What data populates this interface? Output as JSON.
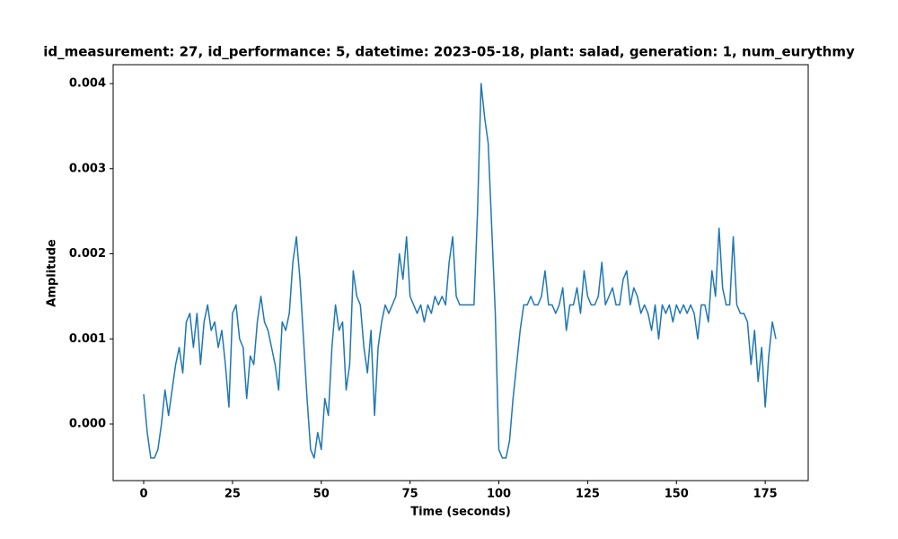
{
  "chart_data": {
    "type": "line",
    "title": "id_measurement: 27, id_performance: 5, datetime: 2023-05-18, plant: salad, generation: 1, num_eurythmy",
    "xlabel": "Time (seconds)",
    "ylabel": "Amplitude",
    "xlim": [
      -8.6,
      187.1
    ],
    "ylim": [
      -0.000665,
      0.004222
    ],
    "xticks": [
      0,
      25,
      50,
      75,
      100,
      125,
      150,
      175
    ],
    "yticks": [
      {
        "value": 0,
        "label": "0.000"
      },
      {
        "value": 0.001,
        "label": "0.001"
      },
      {
        "value": 0.002,
        "label": "0.002"
      },
      {
        "value": 0.003,
        "label": "0.003"
      },
      {
        "value": 0.004,
        "label": "0.004"
      }
    ],
    "grid": false,
    "x": [
      0,
      1,
      2,
      3,
      4,
      5,
      6,
      7,
      8,
      9,
      10,
      11,
      12,
      13,
      14,
      15,
      16,
      17,
      18,
      19,
      20,
      21,
      22,
      23,
      24,
      25,
      26,
      27,
      28,
      29,
      30,
      31,
      32,
      33,
      34,
      35,
      36,
      37,
      38,
      39,
      40,
      41,
      42,
      43,
      44,
      45,
      46,
      47,
      48,
      49,
      50,
      51,
      52,
      53,
      54,
      55,
      56,
      57,
      58,
      59,
      60,
      61,
      62,
      63,
      64,
      65,
      66,
      67,
      68,
      69,
      70,
      71,
      72,
      73,
      74,
      75,
      76,
      77,
      78,
      79,
      80,
      81,
      82,
      83,
      84,
      85,
      86,
      87,
      88,
      89,
      90,
      91,
      92,
      93,
      94,
      95,
      96,
      97,
      98,
      99,
      100,
      101,
      102,
      103,
      104,
      105,
      106,
      107,
      108,
      109,
      110,
      111,
      112,
      113,
      114,
      115,
      116,
      117,
      118,
      119,
      120,
      121,
      122,
      123,
      124,
      125,
      126,
      127,
      128,
      129,
      130,
      131,
      132,
      133,
      134,
      135,
      136,
      137,
      138,
      139,
      140,
      141,
      142,
      143,
      144,
      145,
      146,
      147,
      148,
      149,
      150,
      151,
      152,
      153,
      154,
      155,
      156,
      157,
      158,
      159,
      160,
      161,
      162,
      163,
      164,
      165,
      166,
      167,
      168,
      169,
      170,
      171,
      172,
      173,
      174,
      175,
      176,
      177,
      178
    ],
    "series": [
      {
        "name": "Amplitude",
        "color": "#1f77b4",
        "values": [
          0.00035,
          -0.0001,
          -0.0004,
          -0.0004,
          -0.0003,
          0.0,
          0.0004,
          0.0001,
          0.0004,
          0.0007,
          0.0009,
          0.0006,
          0.0012,
          0.0013,
          0.0009,
          0.0013,
          0.0007,
          0.0012,
          0.0014,
          0.0011,
          0.0012,
          0.0009,
          0.0011,
          0.0007,
          0.0002,
          0.0013,
          0.0014,
          0.001,
          0.0009,
          0.0003,
          0.0008,
          0.0007,
          0.0012,
          0.0015,
          0.0012,
          0.0011,
          0.0009,
          0.0007,
          0.0004,
          0.0012,
          0.0011,
          0.0013,
          0.0019,
          0.0022,
          0.0017,
          0.001,
          0.0003,
          -0.0003,
          -0.0004,
          -0.0001,
          -0.0003,
          0.0003,
          0.0001,
          0.0009,
          0.0014,
          0.0011,
          0.0012,
          0.0004,
          0.0007,
          0.0018,
          0.0015,
          0.0014,
          0.0009,
          0.0006,
          0.0011,
          0.0001,
          0.0009,
          0.0012,
          0.0014,
          0.0013,
          0.0014,
          0.0015,
          0.002,
          0.0017,
          0.0022,
          0.0015,
          0.0014,
          0.0013,
          0.0014,
          0.0012,
          0.0014,
          0.0013,
          0.0015,
          0.0014,
          0.0015,
          0.0014,
          0.0019,
          0.0022,
          0.0015,
          0.0014,
          0.0014,
          0.0014,
          0.0014,
          0.0014,
          0.0025,
          0.004,
          0.0036,
          0.0033,
          0.0023,
          0.0013,
          -0.0003,
          -0.0004,
          -0.0004,
          -0.0002,
          0.0003,
          0.0007,
          0.0011,
          0.0014,
          0.0014,
          0.0015,
          0.0014,
          0.0014,
          0.0015,
          0.0018,
          0.0014,
          0.0014,
          0.0013,
          0.0014,
          0.0016,
          0.0011,
          0.0014,
          0.0014,
          0.0016,
          0.0013,
          0.0018,
          0.0015,
          0.0014,
          0.0014,
          0.0015,
          0.0019,
          0.0014,
          0.0015,
          0.0016,
          0.0014,
          0.0014,
          0.0017,
          0.0018,
          0.0014,
          0.0016,
          0.0015,
          0.0013,
          0.0014,
          0.0013,
          0.0011,
          0.0014,
          0.001,
          0.0014,
          0.0013,
          0.0014,
          0.0012,
          0.0014,
          0.0013,
          0.0014,
          0.0013,
          0.0014,
          0.0013,
          0.001,
          0.0014,
          0.0014,
          0.0012,
          0.0018,
          0.0015,
          0.0023,
          0.0016,
          0.0014,
          0.0014,
          0.0022,
          0.0014,
          0.0013,
          0.0013,
          0.0012,
          0.0007,
          0.0011,
          0.0005,
          0.0009,
          0.0002,
          0.0008,
          0.0012,
          0.001
        ]
      }
    ]
  }
}
